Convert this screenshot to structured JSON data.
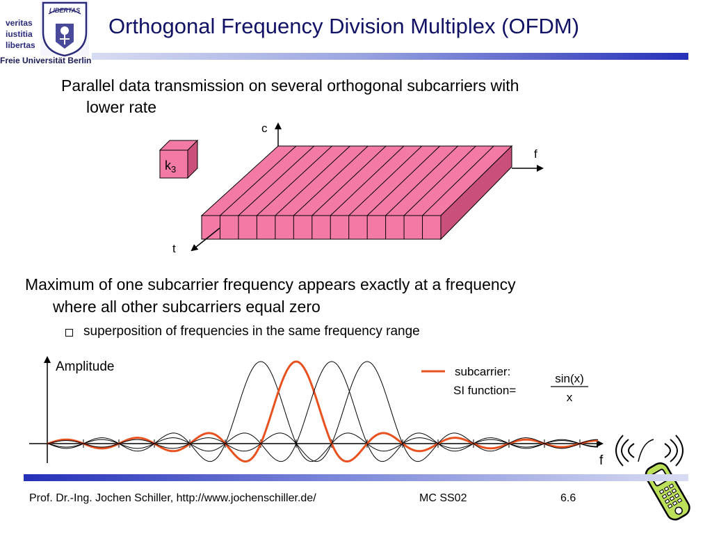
{
  "logo": {
    "seal_text": "LIBERTAS",
    "motto": [
      "veritas",
      "iustitia",
      "libertas"
    ],
    "university": "Freie Universität Berlin"
  },
  "slide": {
    "title": "Orthogonal Frequency Division Multiplex (OFDM)",
    "bullet1": {
      "line1": "Parallel data transmission on several orthogonal subcarriers with",
      "line2": "lower rate"
    },
    "diagram1": {
      "axis_c": "c",
      "axis_f": "f",
      "axis_t": "t",
      "key_label": "k",
      "key_subscript": "3",
      "subcarrier_count": 13,
      "fill_color": "#f47aa6"
    },
    "bullet2": {
      "line1": "Maximum of one subcarrier frequency appears exactly at a frequency",
      "line2": "where all other subcarriers equal zero"
    },
    "sub_bullet": "superposition of frequencies in the same frequency range",
    "plot": {
      "ylabel": "Amplitude",
      "xlabel": "f",
      "legend_line1": "subcarrier:",
      "legend_line2": "SI function=",
      "fraction_num": "sin(x)",
      "fraction_den": "x",
      "highlight_color": "#e8501e"
    }
  },
  "footer": {
    "author": "Prof. Dr.-Ing. Jochen Schiller, http://www.jochenschiller.de/",
    "course": "MC SS02",
    "page": "6.6"
  }
}
